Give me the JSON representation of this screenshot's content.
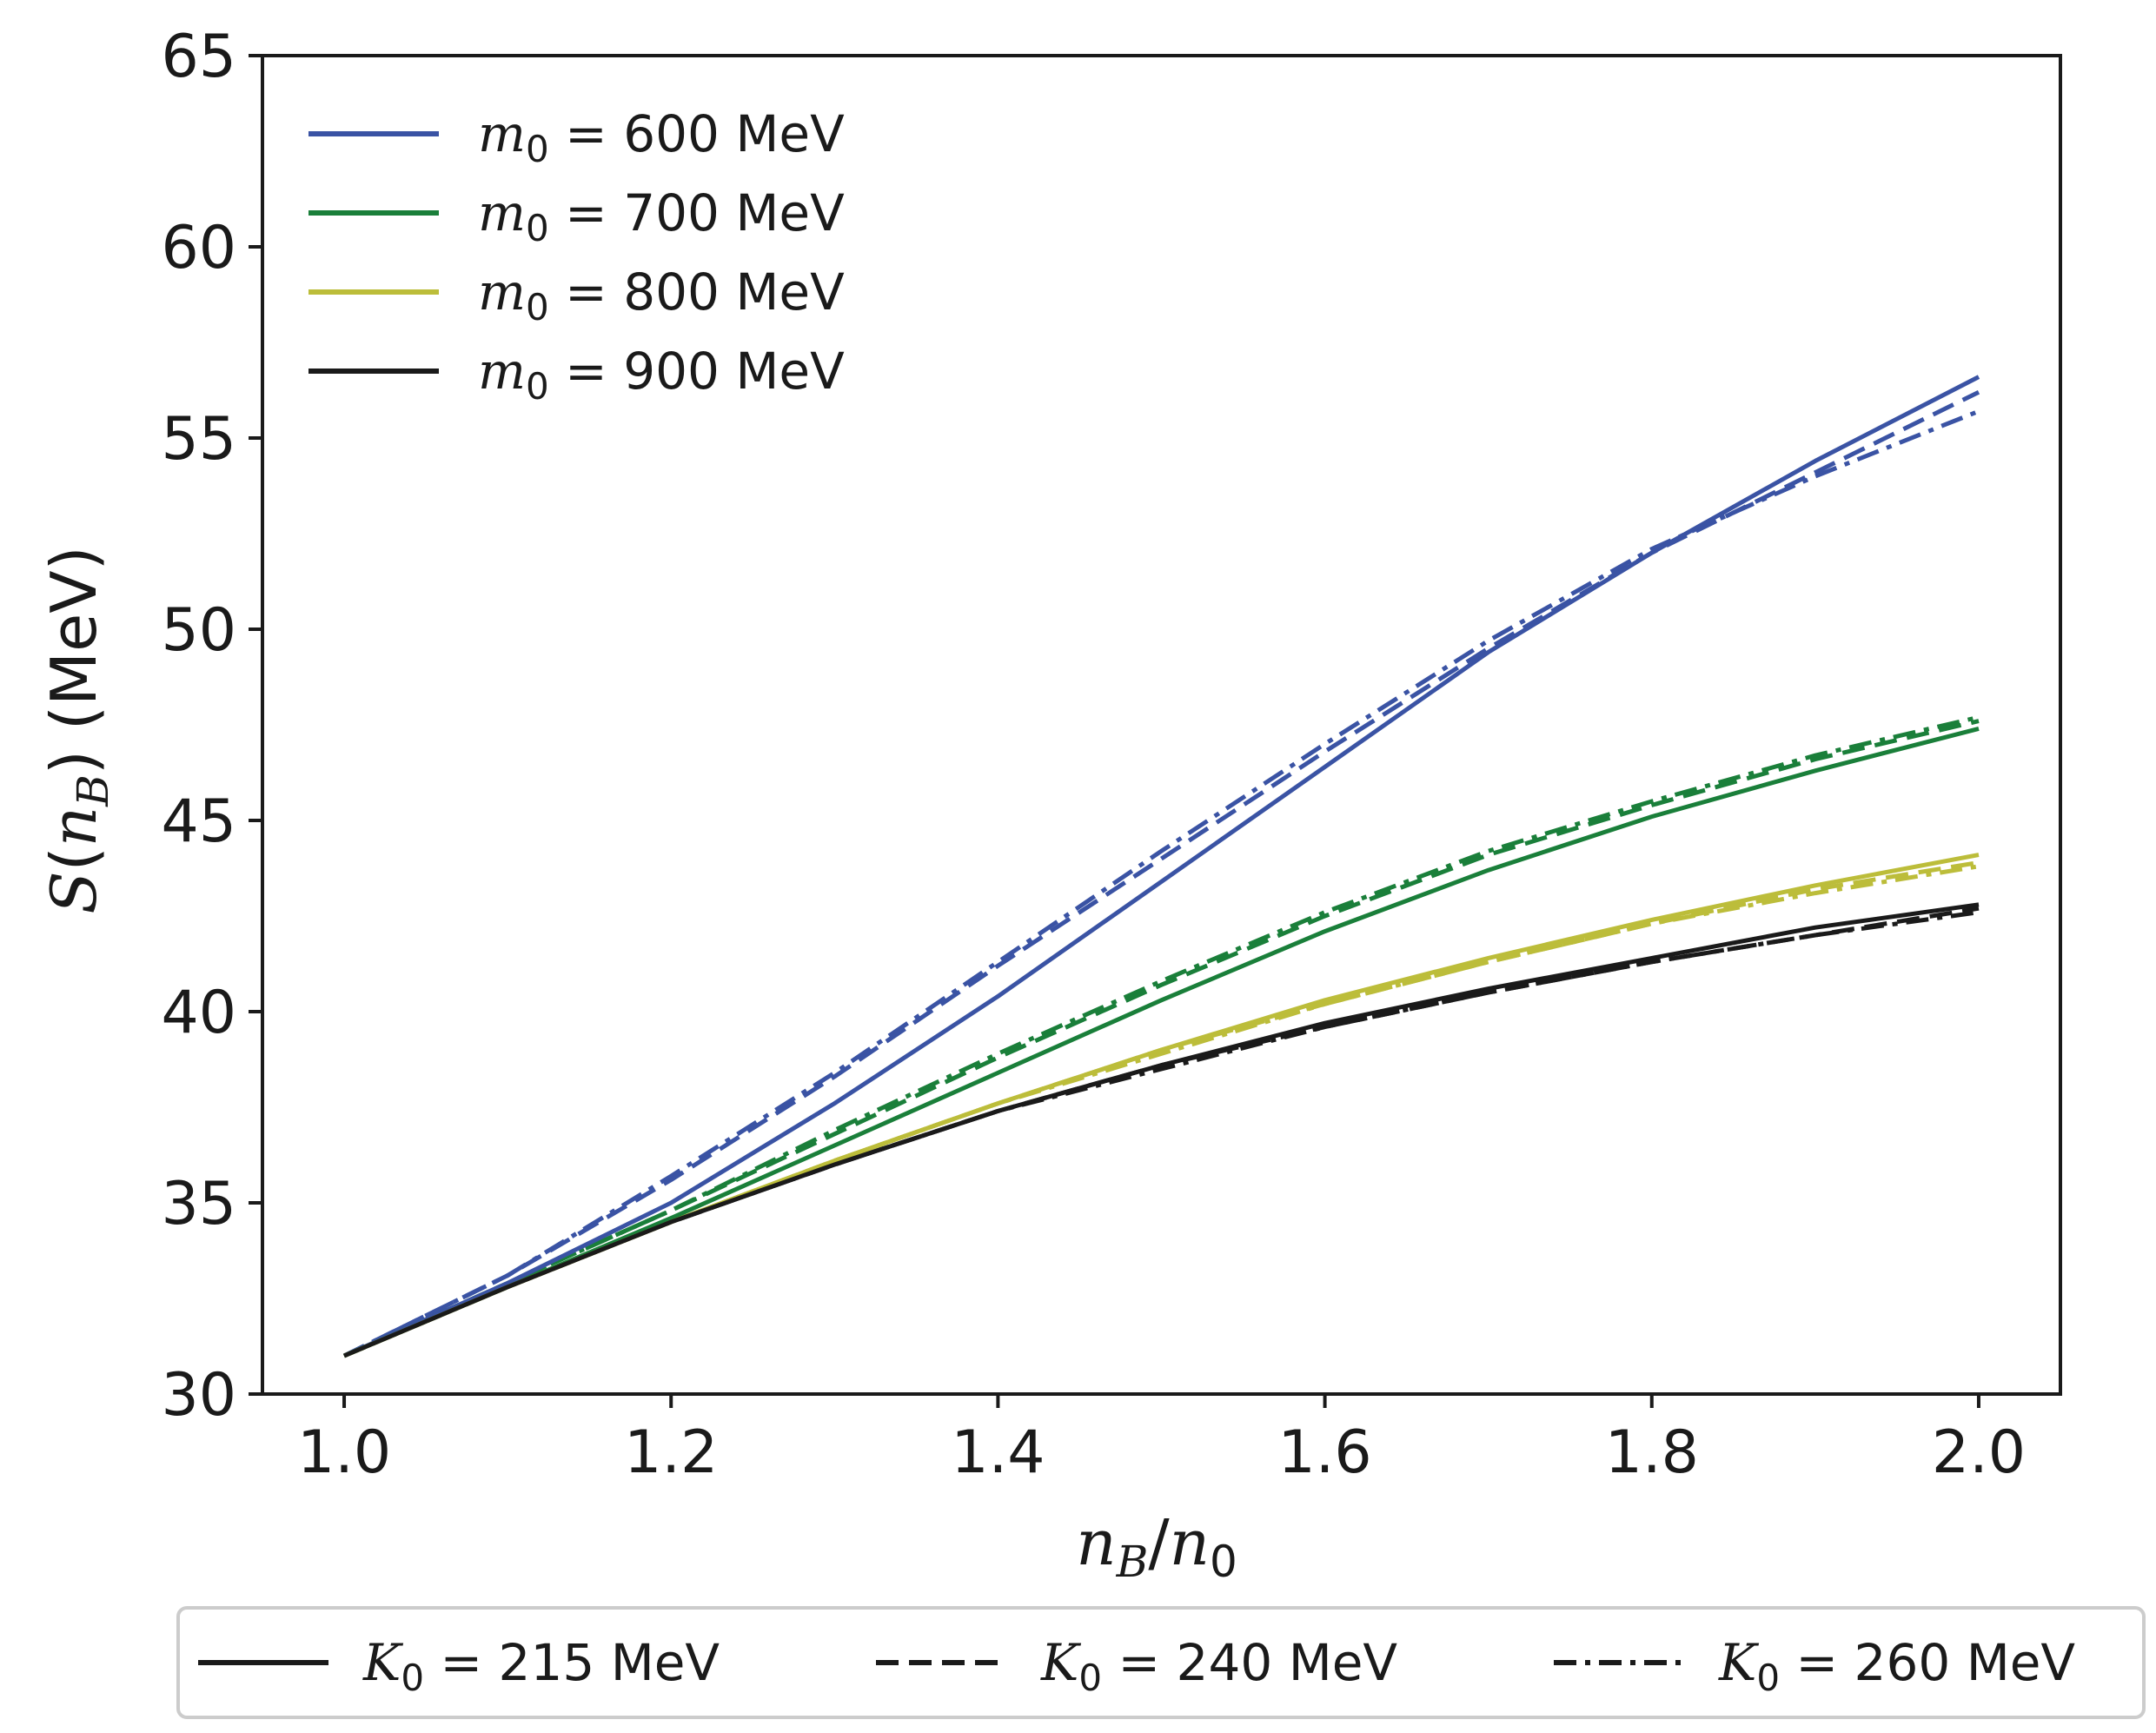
{
  "chart_data": {
    "type": "line",
    "xlabel": {
      "var": "n",
      "var_sub": "B",
      "slash": "/",
      "var2": "n",
      "var2_sub": "0"
    },
    "ylabel": {
      "func": "S",
      "open": "(",
      "var": "n",
      "var_sub": "B",
      "close": ")",
      "units": " (MeV)"
    },
    "xlim": [
      0.95,
      2.05
    ],
    "ylim": [
      30,
      65
    ],
    "xticks": [
      1.0,
      1.2,
      1.4,
      1.6,
      1.8,
      2.0
    ],
    "xtick_labels": [
      "1.0",
      "1.2",
      "1.4",
      "1.6",
      "1.8",
      "2.0"
    ],
    "yticks": [
      30,
      35,
      40,
      45,
      50,
      55,
      60,
      65
    ],
    "ytick_labels": [
      "30",
      "35",
      "40",
      "45",
      "50",
      "55",
      "60",
      "65"
    ],
    "grid": false,
    "x": [
      1.0,
      1.1,
      1.2,
      1.3,
      1.4,
      1.5,
      1.6,
      1.7,
      1.8,
      1.9,
      2.0
    ],
    "color_legend": {
      "placement": "top-left",
      "entries": [
        {
          "var": "m",
          "sub": "0",
          "text": " = 600 MeV",
          "color": "#3a53a4"
        },
        {
          "var": "m",
          "sub": "0",
          "text": " = 700 MeV",
          "color": "#1a7f3a"
        },
        {
          "var": "m",
          "sub": "0",
          "text": " = 800 MeV",
          "color": "#bcbd3a"
        },
        {
          "var": "m",
          "sub": "0",
          "text": " = 900 MeV",
          "color": "#1a1a1a"
        }
      ]
    },
    "style_legend": {
      "placement": "bottom, outside",
      "entries": [
        {
          "var": "K",
          "sub": "0",
          "text": " = 215 MeV",
          "style": "solid"
        },
        {
          "var": "K",
          "sub": "0",
          "text": " = 240 MeV",
          "style": "dashed"
        },
        {
          "var": "K",
          "sub": "0",
          "text": " = 260 MeV",
          "style": "dashdot"
        }
      ]
    },
    "series": [
      {
        "name": "m0 = 600 MeV, K0 = 215 MeV",
        "color": "#3a53a4",
        "style": "solid",
        "values": [
          31.0,
          32.9,
          35.0,
          37.6,
          40.4,
          43.4,
          46.4,
          49.4,
          52.0,
          54.4,
          56.6
        ]
      },
      {
        "name": "m0 = 600 MeV, K0 = 240 MeV",
        "color": "#3a53a4",
        "style": "dashed",
        "values": [
          31.0,
          33.1,
          35.6,
          38.3,
          41.2,
          44.0,
          46.8,
          49.5,
          52.0,
          54.1,
          56.2
        ]
      },
      {
        "name": "m0 = 600 MeV, K0 = 260 MeV",
        "color": "#3a53a4",
        "style": "dashdot",
        "values": [
          31.0,
          33.1,
          35.7,
          38.4,
          41.3,
          44.2,
          47.0,
          49.7,
          52.1,
          54.0,
          55.7
        ]
      },
      {
        "name": "m0 = 700 MeV, K0 = 215 MeV",
        "color": "#1a7f3a",
        "style": "solid",
        "values": [
          31.0,
          32.8,
          34.6,
          36.5,
          38.4,
          40.3,
          42.1,
          43.7,
          45.1,
          46.3,
          47.4
        ]
      },
      {
        "name": "m0 = 700 MeV, K0 = 240 MeV",
        "color": "#1a7f3a",
        "style": "dashed",
        "values": [
          31.0,
          32.9,
          34.8,
          36.8,
          38.8,
          40.7,
          42.5,
          44.1,
          45.4,
          46.6,
          47.6
        ]
      },
      {
        "name": "m0 = 700 MeV, K0 = 260 MeV",
        "color": "#1a7f3a",
        "style": "dashdot",
        "values": [
          31.0,
          32.9,
          34.8,
          36.9,
          38.9,
          40.8,
          42.6,
          44.2,
          45.5,
          46.7,
          47.7
        ]
      },
      {
        "name": "m0 = 800 MeV, K0 = 215 MeV",
        "color": "#bcbd3a",
        "style": "solid",
        "values": [
          31.0,
          32.8,
          34.5,
          36.1,
          37.6,
          39.0,
          40.3,
          41.4,
          42.4,
          43.3,
          44.1
        ]
      },
      {
        "name": "m0 = 800 MeV, K0 = 240 MeV",
        "color": "#bcbd3a",
        "style": "dashed",
        "values": [
          31.0,
          32.8,
          34.5,
          36.1,
          37.6,
          39.0,
          40.2,
          41.3,
          42.3,
          43.2,
          43.9
        ]
      },
      {
        "name": "m0 = 800 MeV, K0 = 260 MeV",
        "color": "#bcbd3a",
        "style": "dashdot",
        "values": [
          31.0,
          32.8,
          34.5,
          36.1,
          37.6,
          38.9,
          40.2,
          41.3,
          42.3,
          43.1,
          43.8
        ]
      },
      {
        "name": "m0 = 900 MeV, K0 = 215 MeV",
        "color": "#1a1a1a",
        "style": "solid",
        "values": [
          31.0,
          32.8,
          34.5,
          36.0,
          37.4,
          38.6,
          39.7,
          40.6,
          41.4,
          42.2,
          42.8
        ]
      },
      {
        "name": "m0 = 900 MeV, K0 = 240 MeV",
        "color": "#1a1a1a",
        "style": "dashed",
        "values": [
          31.0,
          32.8,
          34.5,
          36.0,
          37.4,
          38.6,
          39.6,
          40.5,
          41.3,
          42.0,
          42.7
        ]
      },
      {
        "name": "m0 = 900 MeV, K0 = 260 MeV",
        "color": "#1a1a1a",
        "style": "dashdot",
        "values": [
          31.0,
          32.8,
          34.5,
          36.0,
          37.4,
          38.5,
          39.6,
          40.5,
          41.3,
          42.0,
          42.6
        ]
      }
    ]
  }
}
